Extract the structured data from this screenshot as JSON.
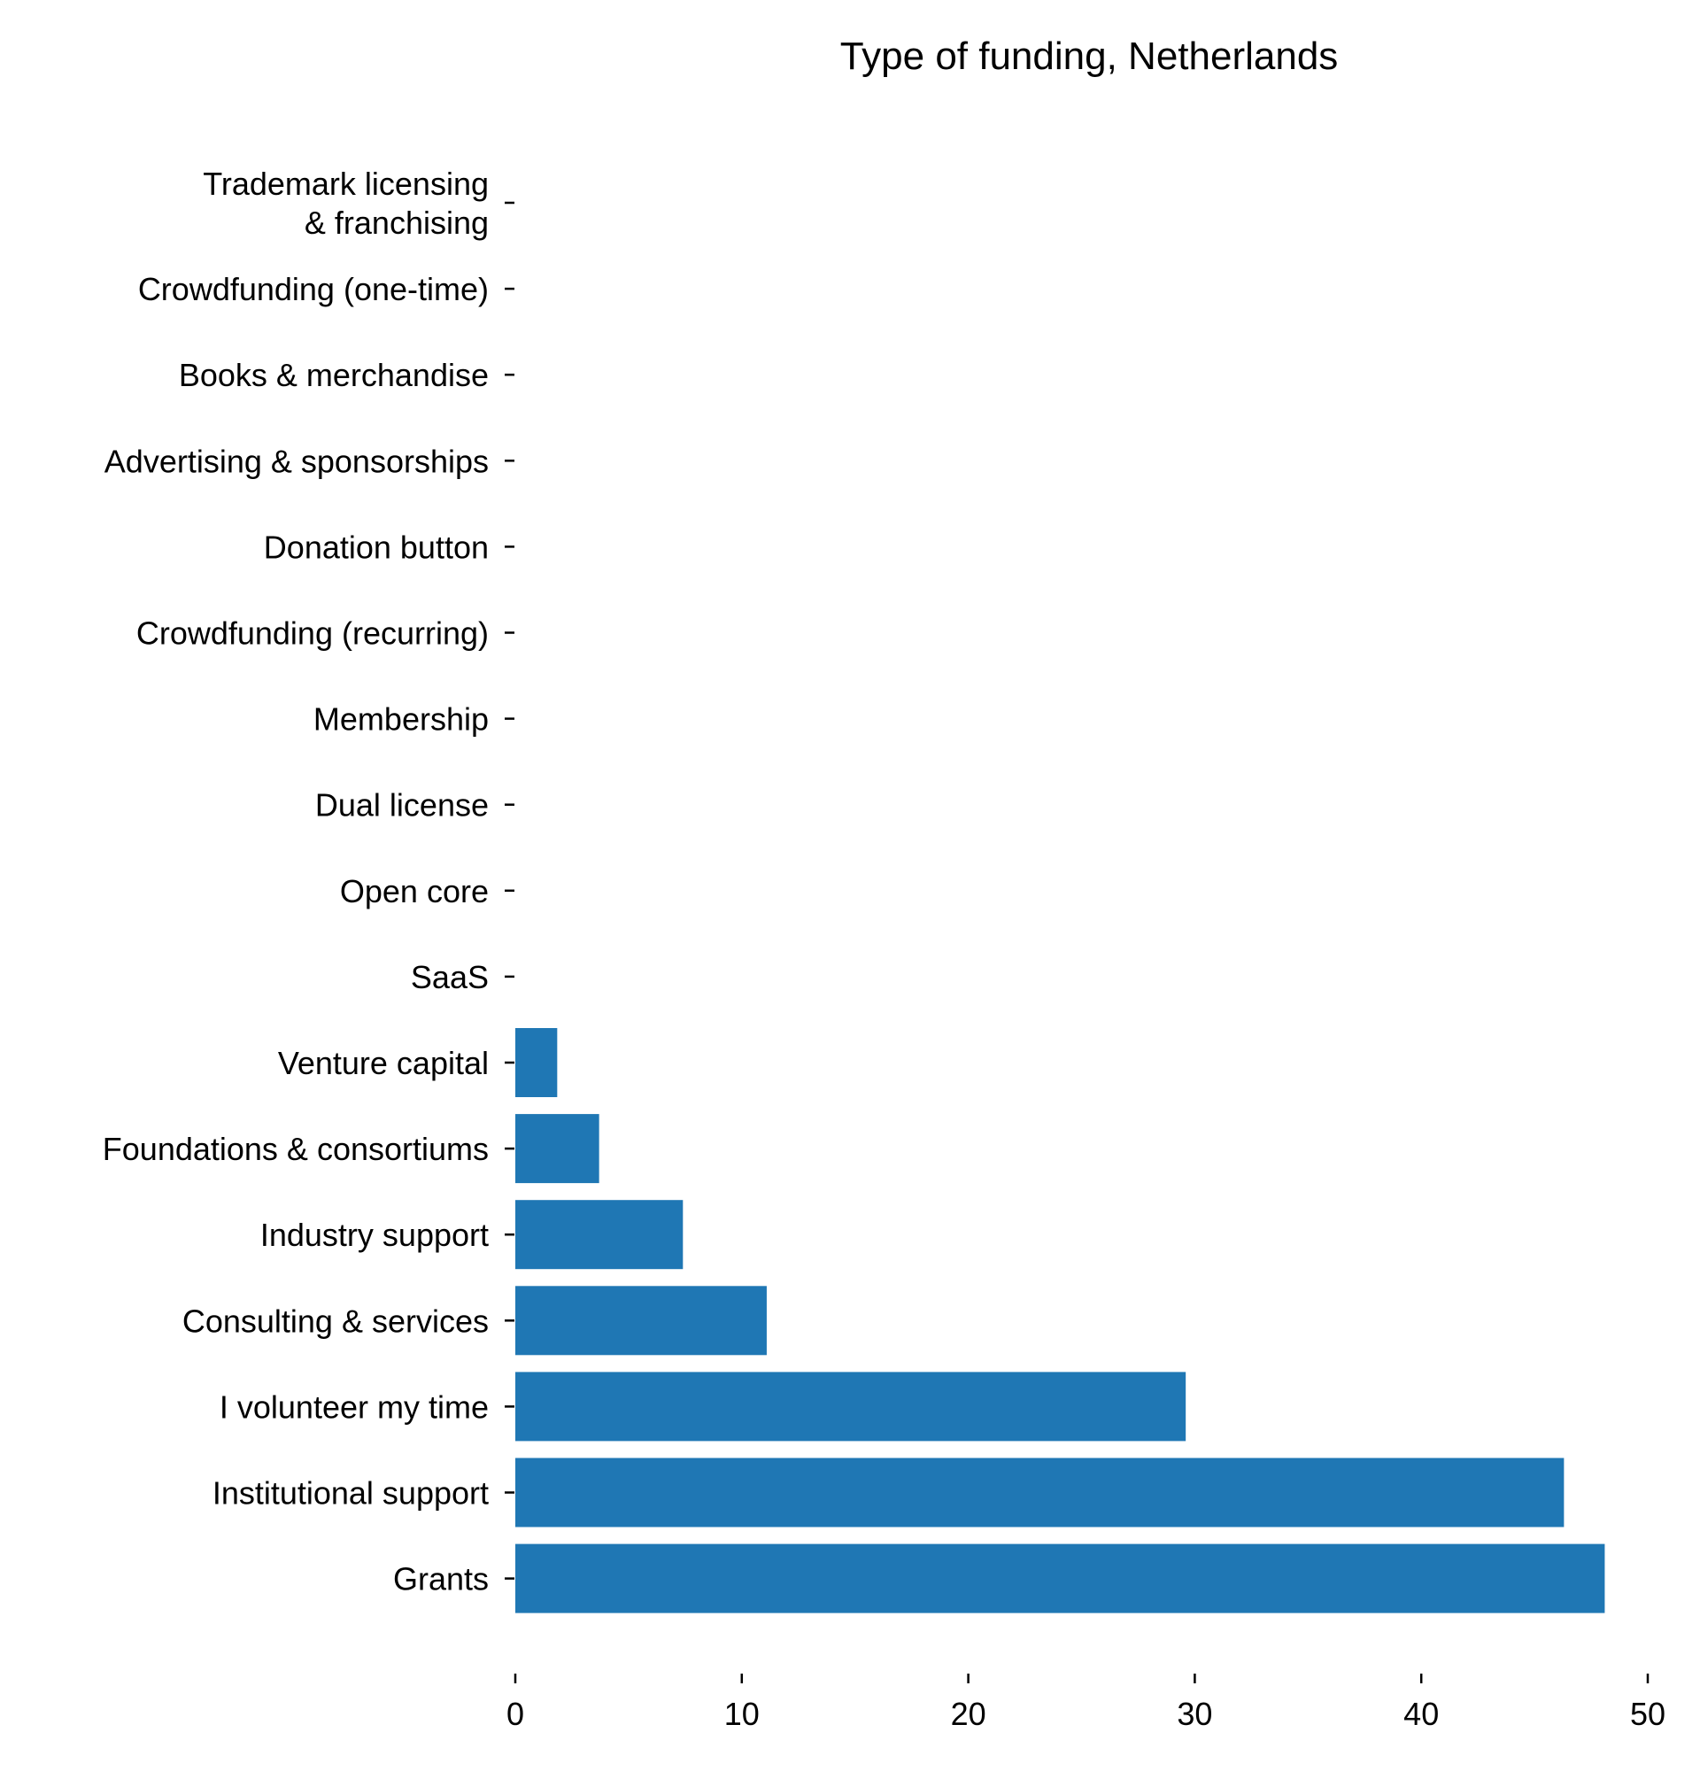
{
  "chart_data": {
    "type": "bar",
    "orientation": "horizontal",
    "title": "Type of funding, Netherlands",
    "xlabel": "",
    "ylabel": "",
    "categories": [
      "Trademark licensing\n& franchising",
      "Crowdfunding (one-time)",
      "Books & merchandise",
      "Advertising & sponsorships",
      "Donation button",
      "Crowdfunding (recurring)",
      "Membership",
      "Dual license",
      "Open core",
      "SaaS",
      "Venture capital",
      "Foundations & consortiums",
      "Industry support",
      "Consulting & services",
      "I volunteer my time",
      "Institutional support",
      "Grants"
    ],
    "values": [
      0,
      0,
      0,
      0,
      0,
      0,
      0,
      0,
      0,
      0,
      1.85,
      3.7,
      7.4,
      11.1,
      29.6,
      46.3,
      48.1
    ],
    "xlim": [
      0,
      50
    ],
    "xticks": [
      0,
      10,
      20,
      30,
      40,
      50
    ],
    "grid": false,
    "bar_color": "#1f77b4",
    "legend": "none"
  }
}
